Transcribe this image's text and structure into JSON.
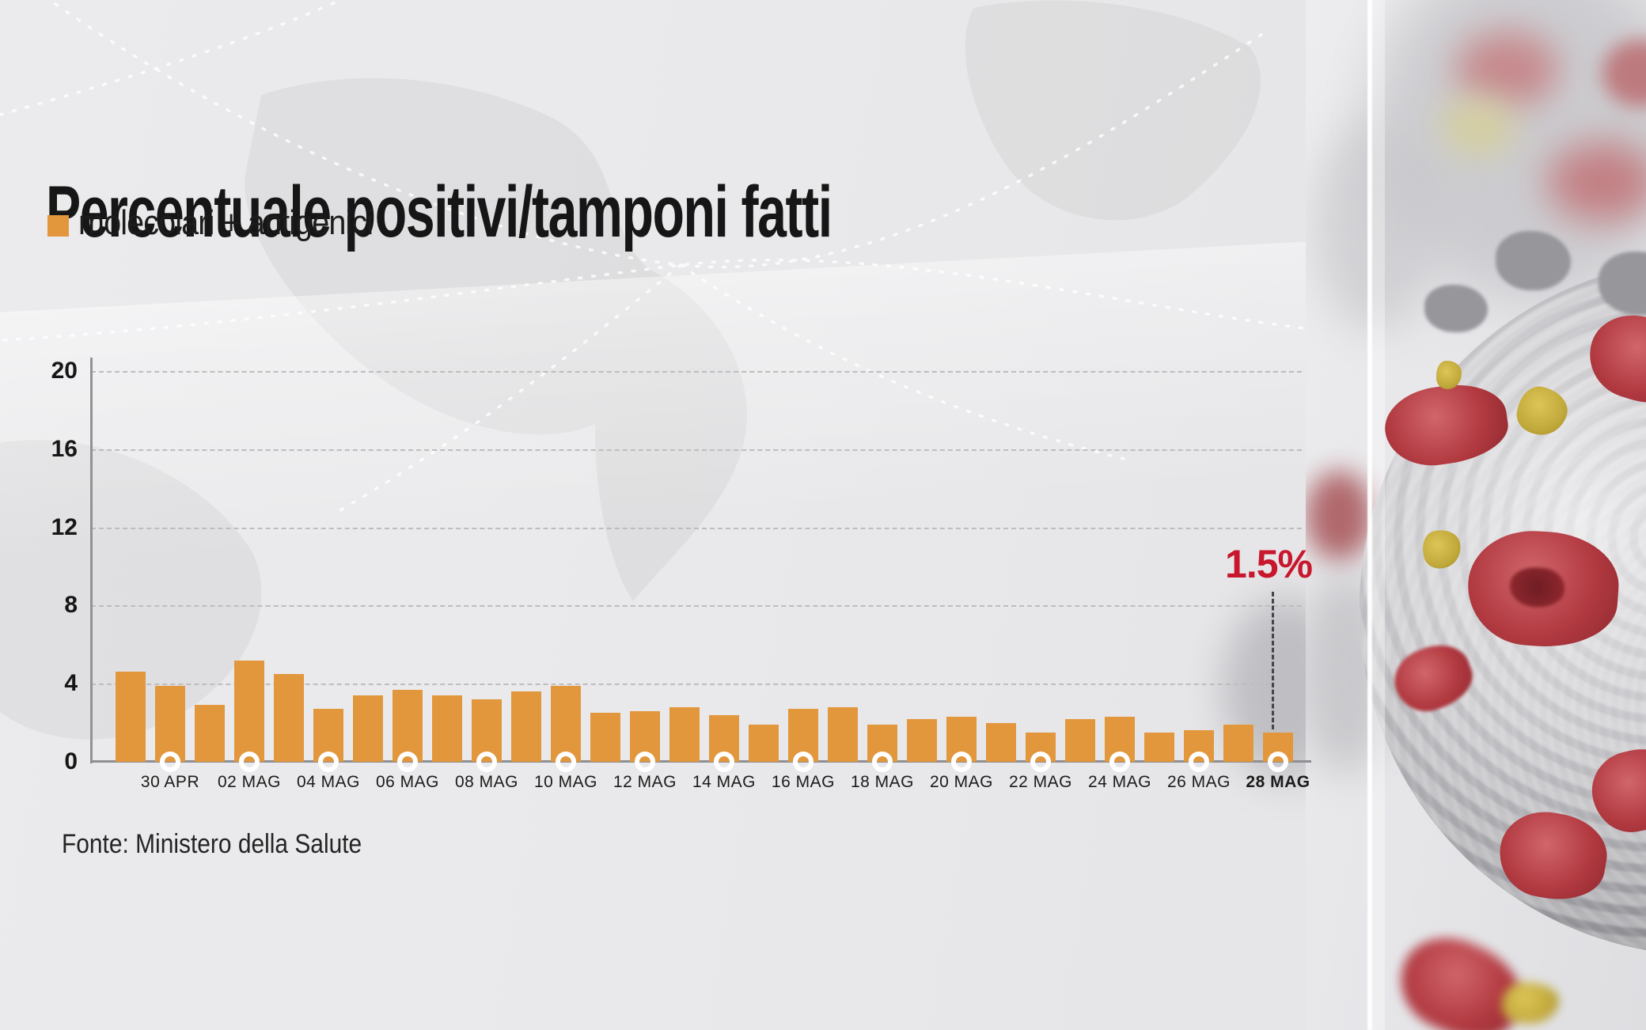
{
  "header": {
    "title": "Percentuale positivi/tamponi fatti",
    "legend_label": "molecolari + antigenici",
    "legend_color": "#E2973C"
  },
  "source_note": "Fonte: Ministero della Salute",
  "colors": {
    "bar": "#E2973C",
    "annotation_red": "#C8172C",
    "grid": "#BDBDC0",
    "axis": "#8F8F93",
    "text": "#1A1A1A"
  },
  "chart_data": {
    "type": "bar",
    "title": "Percentuale positivi/tamponi fatti",
    "series_name": "molecolari + antigenici",
    "x": [
      "29 APR",
      "30 APR",
      "01 MAG",
      "02 MAG",
      "03 MAG",
      "04 MAG",
      "05 MAG",
      "06 MAG",
      "07 MAG",
      "08 MAG",
      "09 MAG",
      "10 MAG",
      "11 MAG",
      "12 MAG",
      "13 MAG",
      "14 MAG",
      "15 MAG",
      "16 MAG",
      "17 MAG",
      "18 MAG",
      "19 MAG",
      "20 MAG",
      "21 MAG",
      "22 MAG",
      "23 MAG",
      "24 MAG",
      "25 MAG",
      "26 MAG",
      "27 MAG",
      "28 MAG"
    ],
    "values": [
      4.6,
      3.9,
      2.9,
      5.2,
      4.5,
      2.7,
      3.4,
      3.7,
      3.4,
      3.2,
      3.6,
      3.9,
      2.5,
      2.6,
      2.8,
      2.4,
      1.9,
      2.7,
      2.8,
      1.9,
      2.2,
      2.3,
      2.0,
      1.5,
      2.2,
      2.3,
      1.5,
      1.6,
      1.9,
      1.5
    ],
    "x_tick_labels": [
      "30 APR",
      "02 MAG",
      "04 MAG",
      "06 MAG",
      "08 MAG",
      "10 MAG",
      "12 MAG",
      "14 MAG",
      "16 MAG",
      "18 MAG",
      "20 MAG",
      "22 MAG",
      "24 MAG",
      "26 MAG",
      "28 MAG"
    ],
    "yticks": [
      0,
      4,
      8,
      12,
      16,
      20
    ],
    "ylim": [
      0,
      20
    ],
    "grid": "horizontal-dashed",
    "bar_color": "#E2973C",
    "annotation": {
      "label": "1.5%",
      "target_x": "28 MAG",
      "value": 1.5
    }
  }
}
